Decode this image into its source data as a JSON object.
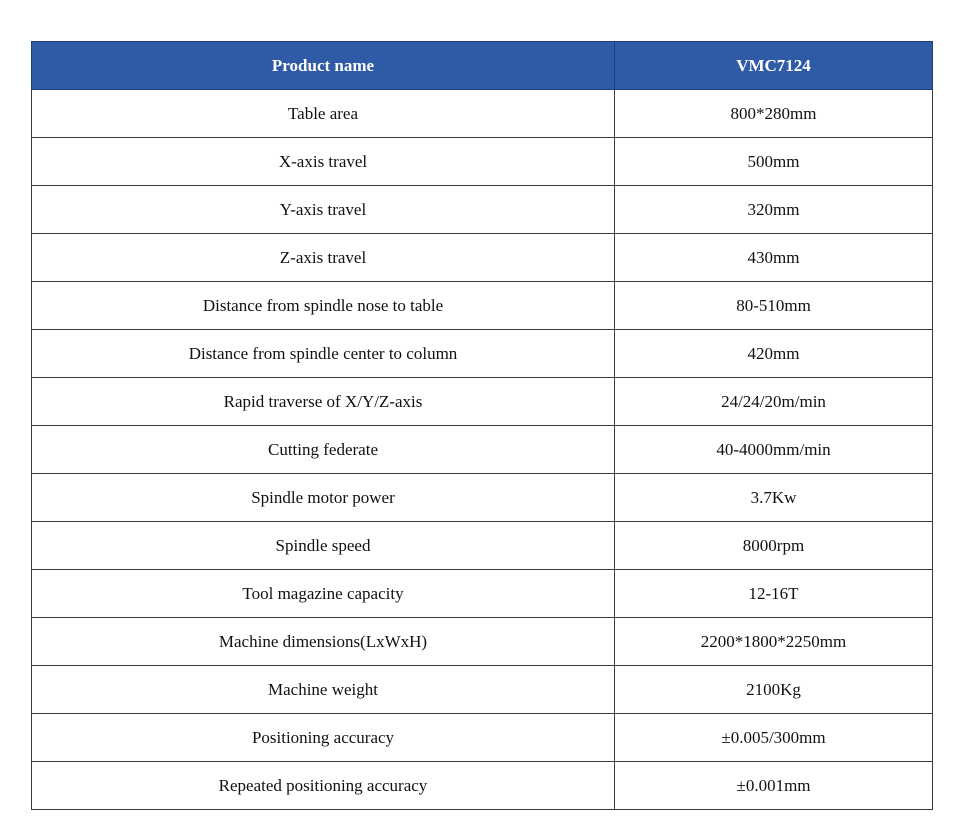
{
  "table": {
    "header": {
      "name": "Product name",
      "value": "VMC7124"
    },
    "rows": [
      {
        "name": "Table area",
        "value": "800*280mm"
      },
      {
        "name": "X-axis travel",
        "value": "500mm"
      },
      {
        "name": "Y-axis travel",
        "value": "320mm"
      },
      {
        "name": "Z-axis travel",
        "value": "430mm"
      },
      {
        "name": "Distance from spindle nose to table",
        "value": "80-510mm"
      },
      {
        "name": "Distance from spindle center to column",
        "value": "420mm"
      },
      {
        "name": "Rapid traverse of X/Y/Z-axis",
        "value": "24/24/20m/min"
      },
      {
        "name": "Cutting federate",
        "value": "40-4000mm/min"
      },
      {
        "name": "Spindle motor power",
        "value": "3.7Kw"
      },
      {
        "name": "Spindle speed",
        "value": "8000rpm"
      },
      {
        "name": "Tool magazine capacity",
        "value": "12-16T"
      },
      {
        "name": "Machine dimensions(LxWxH)",
        "value": "2200*1800*2250mm"
      },
      {
        "name": "Machine weight",
        "value": "2100Kg"
      },
      {
        "name": "Positioning accuracy",
        "value": "±0.005/300mm"
      },
      {
        "name": "Repeated positioning accuracy",
        "value": "±0.001mm"
      }
    ]
  },
  "colors": {
    "header_background": "#2f5ba6",
    "header_text": "#ffffff",
    "border": "#3a3a3a"
  }
}
